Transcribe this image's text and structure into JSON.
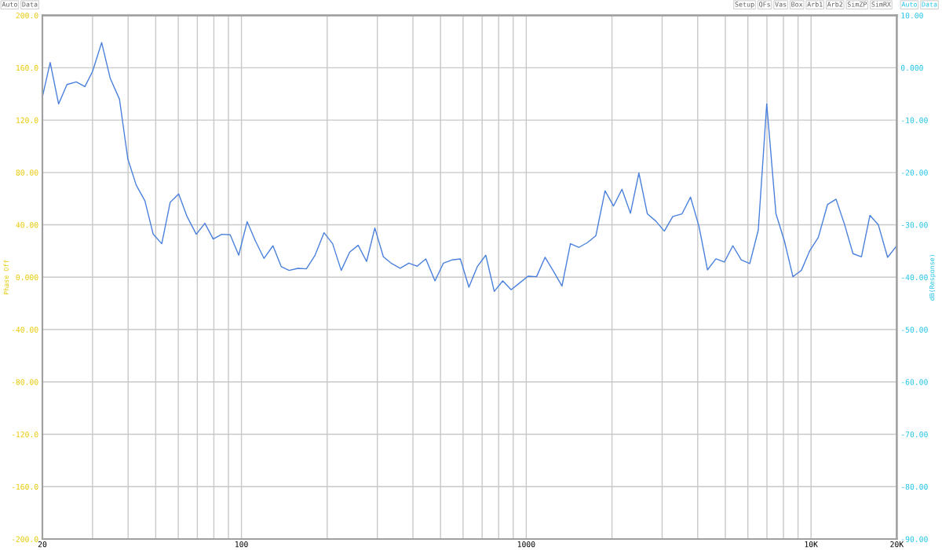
{
  "chart_data": {
    "type": "line",
    "ylabel": "Phase Off",
    "y2label": "dB(Response)",
    "annotations": [
      "Auto",
      "Data",
      "Setup",
      "QFs",
      "Vas",
      "Box",
      "Arb1",
      "Arb2",
      "SimZP",
      "SimRX",
      "Auto",
      "Data"
    ],
    "log": "x",
    "grid": true,
    "line_style": "solid",
    "marker": "none",
    "xlim": [
      20,
      20000
    ],
    "xticks": [
      20,
      {
        "value": 30,
        "label": null
      },
      {
        "value": 40,
        "label": null
      },
      {
        "value": 50,
        "label": null
      },
      {
        "value": 60,
        "label": null
      },
      {
        "value": 70,
        "label": null
      },
      {
        "value": 80,
        "label": null
      },
      {
        "value": 90,
        "label": null
      },
      100,
      {
        "value": 200,
        "label": null
      },
      {
        "value": 300,
        "label": null
      },
      {
        "value": 400,
        "label": null
      },
      {
        "value": 500,
        "label": null
      },
      {
        "value": 600,
        "label": null
      },
      {
        "value": 700,
        "label": null
      },
      {
        "value": 800,
        "label": null
      },
      {
        "value": 900,
        "label": null
      },
      1000,
      {
        "value": 2000,
        "label": null
      },
      {
        "value": 3000,
        "label": null
      },
      {
        "value": 4000,
        "label": null
      },
      {
        "value": 5000,
        "label": null
      },
      {
        "value": 6000,
        "label": null
      },
      {
        "value": 7000,
        "label": null
      },
      {
        "value": 8000,
        "label": null
      },
      {
        "value": 9000,
        "label": null
      },
      {
        "value": 10000,
        "label": "10K"
      },
      {
        "value": 20000,
        "label": "20K"
      }
    ],
    "ylim": [
      -200,
      200
    ],
    "yticks": [
      {
        "value": 200,
        "label": "200.0"
      },
      {
        "value": 160,
        "label": "160.0"
      },
      {
        "value": 120,
        "label": "120.0"
      },
      {
        "value": 80,
        "label": "80.00"
      },
      {
        "value": 40,
        "label": "40.00"
      },
      {
        "value": 0,
        "label": "0.000"
      },
      {
        "value": -40,
        "label": "-40.00"
      },
      {
        "value": -80,
        "label": "-80.00"
      },
      {
        "value": -120,
        "label": "-120.0"
      },
      {
        "value": -160,
        "label": "-160.0"
      },
      {
        "value": -200,
        "label": "-200.0"
      }
    ],
    "y2lim": [
      -90,
      10
    ],
    "y2ticks": [
      {
        "value": 10,
        "label": "10.00"
      },
      {
        "value": 0,
        "label": "0.000"
      },
      {
        "value": -10,
        "label": "-10.00"
      },
      {
        "value": -20,
        "label": "-20.00"
      },
      {
        "value": -30,
        "label": "-30.00"
      },
      {
        "value": -40,
        "label": "-40.00"
      },
      {
        "value": -50,
        "label": "-50.00"
      },
      {
        "value": -60,
        "label": "-60.00"
      },
      {
        "value": -70,
        "label": "-70.00"
      },
      {
        "value": -80,
        "label": "-80.00"
      },
      {
        "value": -90,
        "label": "-90.00"
      }
    ],
    "series": [
      {
        "color": "#4a80dc",
        "axis": "y2",
        "x": [
          20,
          21.3,
          22.8,
          24.4,
          26.3,
          28.2,
          30,
          32.3,
          34.6,
          37.3,
          39.9,
          42.7,
          45.8,
          49,
          52.5,
          56.2,
          60.2,
          64.4,
          69.4,
          74.4,
          79.6,
          85.3,
          91.3,
          97.8,
          104.7,
          112,
          120,
          129,
          138,
          147,
          158,
          169,
          181,
          195,
          209,
          224,
          240,
          257,
          275,
          294,
          315,
          337,
          361,
          387,
          414,
          444,
          478,
          512,
          548,
          587,
          629,
          673,
          721,
          772,
          827,
          885,
          948,
          1015,
          1087,
          1164,
          1247,
          1335,
          1429,
          1531,
          1639,
          1755,
          1891,
          2025,
          2168,
          2322,
          2486,
          2662,
          2852,
          3054,
          3270,
          3524,
          3774,
          4042,
          4328,
          4634,
          4962,
          5314,
          5690,
          6094,
          6526,
          6988,
          7530,
          8064,
          8636,
          9248,
          9902,
          10604,
          11428,
          12238,
          13106,
          14034,
          15028,
          16094,
          17234,
          18566,
          20000
        ],
        "values": [
          -5.6,
          1.0,
          -6.9,
          -3.2,
          -2.7,
          -3.6,
          -0.7,
          4.8,
          -2.0,
          -6.0,
          -17.4,
          -22.4,
          -25.4,
          -31.8,
          -33.6,
          -25.7,
          -24.1,
          -28.4,
          -31.8,
          -29.7,
          -32.7,
          -31.8,
          -31.9,
          -35.8,
          -29.4,
          -33.1,
          -36.4,
          -34.0,
          -38.0,
          -38.7,
          -38.3,
          -38.4,
          -35.9,
          -31.5,
          -33.6,
          -38.7,
          -35.2,
          -33.9,
          -37.0,
          -30.6,
          -36.1,
          -37.4,
          -38.3,
          -37.3,
          -37.9,
          -36.5,
          -40.7,
          -37.3,
          -36.7,
          -36.5,
          -41.9,
          -38.0,
          -35.8,
          -42.7,
          -40.7,
          -42.4,
          -41.1,
          -39.8,
          -39.9,
          -36.2,
          -38.9,
          -41.7,
          -33.6,
          -34.3,
          -33.4,
          -32.1,
          -23.5,
          -26.4,
          -23.2,
          -27.8,
          -20.1,
          -27.9,
          -29.3,
          -31.2,
          -28.4,
          -27.9,
          -24.7,
          -30.3,
          -38.6,
          -36.5,
          -37.1,
          -34.0,
          -36.7,
          -37.4,
          -31.0,
          -6.9,
          -27.9,
          -33.1,
          -39.9,
          -38.7,
          -34.9,
          -32.4,
          -26.1,
          -25.1,
          -29.9,
          -35.5,
          -36.1,
          -28.2,
          -30.0,
          -36.2,
          -34.0
        ]
      }
    ]
  }
}
